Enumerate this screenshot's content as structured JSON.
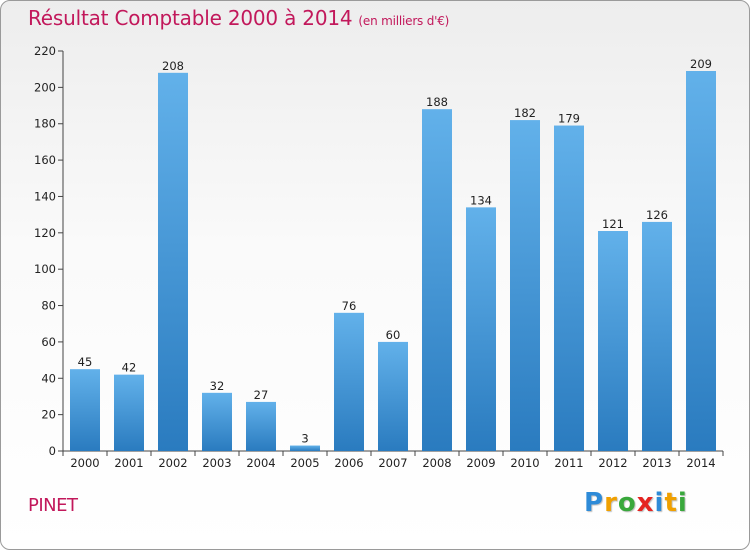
{
  "chart_data": {
    "type": "bar",
    "title": "Résultat Comptable 2000 à 2014",
    "subtitle": "(en milliers d'€)",
    "categories": [
      "2000",
      "2001",
      "2002",
      "2003",
      "2004",
      "2005",
      "2006",
      "2007",
      "2008",
      "2009",
      "2010",
      "2011",
      "2012",
      "2013",
      "2014"
    ],
    "values": [
      45,
      42,
      208,
      32,
      27,
      3,
      76,
      60,
      188,
      134,
      182,
      179,
      121,
      126,
      209
    ],
    "ylim": [
      0,
      220
    ],
    "yticks": [
      0,
      20,
      40,
      60,
      80,
      100,
      120,
      140,
      160,
      180,
      200,
      220
    ],
    "xlabel": "",
    "ylabel": "",
    "grid": false,
    "bar_color_top": "#62b1ea",
    "bar_color_bottom": "#2a7bbf"
  },
  "footer": {
    "place": "PINET",
    "logo": {
      "letters": [
        "P",
        "r",
        "o",
        "x",
        "i",
        "t",
        "i"
      ]
    }
  }
}
